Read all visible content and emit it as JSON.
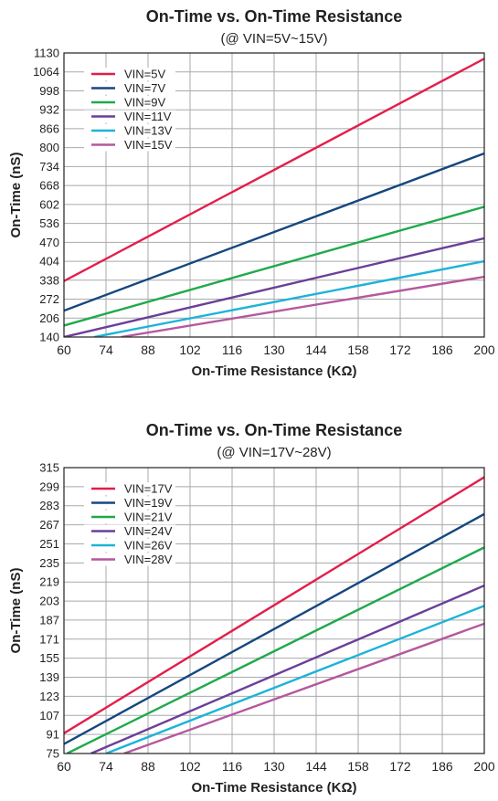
{
  "chart_data": [
    {
      "type": "line",
      "title": "On-Time vs. On-Time Resistance",
      "subtitle": "(@ VIN=5V~15V)",
      "xlabel": "On-Time Resistance (KΩ)",
      "ylabel": "On-Time (nS)",
      "xlim": [
        60,
        200
      ],
      "ylim": [
        140,
        1130
      ],
      "x_ticks": [
        60,
        74,
        88,
        102,
        116,
        130,
        144,
        158,
        172,
        186,
        200
      ],
      "y_ticks": [
        140,
        206,
        272,
        338,
        404,
        470,
        536,
        602,
        668,
        734,
        800,
        866,
        932,
        998,
        1064,
        1130
      ],
      "grid": true,
      "legend_position": "top-left",
      "series": [
        {
          "name": "VIN=5V",
          "color": "#e31e4a",
          "x": [
            60,
            200
          ],
          "y": [
            335,
            1110
          ]
        },
        {
          "name": "VIN=7V",
          "color": "#15477f",
          "x": [
            60,
            200
          ],
          "y": [
            232,
            780
          ]
        },
        {
          "name": "VIN=9V",
          "color": "#1faa4b",
          "x": [
            60,
            200
          ],
          "y": [
            180,
            594
          ]
        },
        {
          "name": "VIN=11V",
          "color": "#6b3f98",
          "x": [
            60,
            200
          ],
          "y": [
            140,
            484
          ]
        },
        {
          "name": "VIN=13V",
          "color": "#1db3d8",
          "x": [
            70,
            200
          ],
          "y": [
            140,
            404
          ]
        },
        {
          "name": "VIN=15V",
          "color": "#b4589e",
          "x": [
            79,
            200
          ],
          "y": [
            140,
            350
          ]
        }
      ]
    },
    {
      "type": "line",
      "title": "On-Time vs. On-Time Resistance",
      "subtitle": "(@ VIN=17V~28V)",
      "xlabel": "On-Time Resistance (KΩ)",
      "ylabel": "On-Time (nS)",
      "xlim": [
        60,
        200
      ],
      "ylim": [
        75,
        315
      ],
      "x_ticks": [
        60,
        74,
        88,
        102,
        116,
        130,
        144,
        158,
        172,
        186,
        200
      ],
      "y_ticks": [
        75,
        91,
        107,
        123,
        139,
        155,
        171,
        187,
        203,
        219,
        235,
        251,
        267,
        283,
        299,
        315
      ],
      "grid": true,
      "legend_position": "top-left",
      "series": [
        {
          "name": "VIN=17V",
          "color": "#e31e4a",
          "x": [
            60,
            200
          ],
          "y": [
            92,
            307
          ]
        },
        {
          "name": "VIN=19V",
          "color": "#15477f",
          "x": [
            60,
            200
          ],
          "y": [
            83,
            276
          ]
        },
        {
          "name": "VIN=21V",
          "color": "#1faa4b",
          "x": [
            61,
            200
          ],
          "y": [
            75,
            248
          ]
        },
        {
          "name": "VIN=24V",
          "color": "#6b3f98",
          "x": [
            69,
            200
          ],
          "y": [
            75,
            216
          ]
        },
        {
          "name": "VIN=26V",
          "color": "#1db3d8",
          "x": [
            74,
            200
          ],
          "y": [
            75,
            199
          ]
        },
        {
          "name": "VIN=28V",
          "color": "#b4589e",
          "x": [
            80,
            200
          ],
          "y": [
            75,
            184
          ]
        }
      ]
    }
  ]
}
